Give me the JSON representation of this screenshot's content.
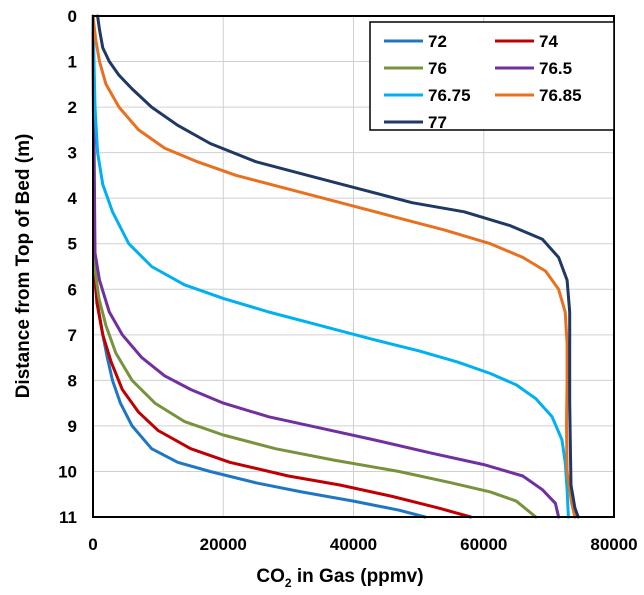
{
  "chart_data": {
    "type": "line",
    "xlabel_main": "CO",
    "xlabel_sub": "2",
    "xlabel_rest": " in Gas (ppmv)",
    "ylabel": "Distance from Top of Bed (m)",
    "xlim": [
      0,
      80000
    ],
    "ylim": [
      0,
      11
    ],
    "y_inverted": true,
    "x_ticks": [
      "0",
      "20000",
      "40000",
      "60000",
      "80000"
    ],
    "y_ticks": [
      "0",
      "1",
      "2",
      "3",
      "4",
      "5",
      "6",
      "7",
      "8",
      "9",
      "10",
      "11"
    ],
    "grid": true,
    "legend_position": "top-right",
    "series": [
      {
        "name": "72",
        "color": "#1f77c4",
        "points": [
          [
            0,
            0
          ],
          [
            150,
            5
          ],
          [
            400,
            6
          ],
          [
            900,
            6.5
          ],
          [
            1500,
            7
          ],
          [
            2200,
            7.5
          ],
          [
            3000,
            8
          ],
          [
            4200,
            8.5
          ],
          [
            6000,
            9
          ],
          [
            9000,
            9.5
          ],
          [
            13000,
            9.8
          ],
          [
            18000,
            10
          ],
          [
            25000,
            10.25
          ],
          [
            32000,
            10.45
          ],
          [
            40000,
            10.65
          ],
          [
            47000,
            10.85
          ],
          [
            51000,
            11
          ]
        ]
      },
      {
        "name": "74",
        "color": "#c00000",
        "points": [
          [
            0,
            0
          ],
          [
            200,
            5.5
          ],
          [
            600,
            6.3
          ],
          [
            1500,
            7
          ],
          [
            2800,
            7.6
          ],
          [
            4500,
            8.2
          ],
          [
            7000,
            8.7
          ],
          [
            10000,
            9.1
          ],
          [
            15000,
            9.5
          ],
          [
            21000,
            9.8
          ],
          [
            30000,
            10.1
          ],
          [
            38000,
            10.3
          ],
          [
            46000,
            10.55
          ],
          [
            53000,
            10.8
          ],
          [
            58000,
            11
          ]
        ]
      },
      {
        "name": "76",
        "color": "#77933c",
        "points": [
          [
            0,
            0
          ],
          [
            250,
            5.5
          ],
          [
            900,
            6.2
          ],
          [
            2000,
            6.8
          ],
          [
            3500,
            7.4
          ],
          [
            6000,
            8
          ],
          [
            9500,
            8.5
          ],
          [
            14000,
            8.9
          ],
          [
            20000,
            9.2
          ],
          [
            28000,
            9.5
          ],
          [
            37000,
            9.75
          ],
          [
            47000,
            10
          ],
          [
            55000,
            10.25
          ],
          [
            61000,
            10.45
          ],
          [
            65000,
            10.65
          ],
          [
            68000,
            11
          ]
        ]
      },
      {
        "name": "76.5",
        "color": "#7030a0",
        "points": [
          [
            0,
            0
          ],
          [
            300,
            5.2
          ],
          [
            1000,
            5.8
          ],
          [
            2500,
            6.5
          ],
          [
            4500,
            7
          ],
          [
            7500,
            7.5
          ],
          [
            11000,
            7.9
          ],
          [
            15000,
            8.2
          ],
          [
            20000,
            8.5
          ],
          [
            27000,
            8.8
          ],
          [
            35000,
            9.05
          ],
          [
            43000,
            9.3
          ],
          [
            52000,
            9.6
          ],
          [
            60000,
            9.85
          ],
          [
            66000,
            10.1
          ],
          [
            69000,
            10.4
          ],
          [
            71000,
            10.7
          ],
          [
            71500,
            11
          ]
        ]
      },
      {
        "name": "76.75",
        "color": "#00b0f0",
        "points": [
          [
            0,
            0
          ],
          [
            300,
            2
          ],
          [
            700,
            3
          ],
          [
            1500,
            3.7
          ],
          [
            3000,
            4.3
          ],
          [
            5500,
            5
          ],
          [
            9000,
            5.5
          ],
          [
            14000,
            5.9
          ],
          [
            20000,
            6.2
          ],
          [
            27000,
            6.5
          ],
          [
            35000,
            6.8
          ],
          [
            43000,
            7.1
          ],
          [
            50000,
            7.35
          ],
          [
            56000,
            7.6
          ],
          [
            61000,
            7.85
          ],
          [
            65000,
            8.1
          ],
          [
            68000,
            8.4
          ],
          [
            70500,
            8.8
          ],
          [
            72000,
            9.3
          ],
          [
            72500,
            9.8
          ],
          [
            72800,
            10.4
          ],
          [
            73000,
            11
          ]
        ]
      },
      {
        "name": "76.85",
        "color": "#e8701f",
        "points": [
          [
            0,
            0
          ],
          [
            400,
            0.5
          ],
          [
            1000,
            1
          ],
          [
            2000,
            1.5
          ],
          [
            4000,
            2
          ],
          [
            7000,
            2.5
          ],
          [
            11000,
            2.9
          ],
          [
            16000,
            3.2
          ],
          [
            22000,
            3.5
          ],
          [
            30000,
            3.8
          ],
          [
            38000,
            4.1
          ],
          [
            46000,
            4.4
          ],
          [
            54000,
            4.7
          ],
          [
            61000,
            5
          ],
          [
            66000,
            5.3
          ],
          [
            69500,
            5.6
          ],
          [
            71500,
            6
          ],
          [
            72500,
            6.5
          ],
          [
            72800,
            7.2
          ],
          [
            72800,
            8
          ],
          [
            72700,
            9
          ],
          [
            72800,
            10
          ],
          [
            73500,
            10.7
          ],
          [
            74000,
            11
          ]
        ]
      },
      {
        "name": "77",
        "color": "#1f3864",
        "points": [
          [
            700,
            0
          ],
          [
            1000,
            0.3
          ],
          [
            1500,
            0.7
          ],
          [
            2500,
            1
          ],
          [
            4000,
            1.3
          ],
          [
            6000,
            1.6
          ],
          [
            9000,
            2
          ],
          [
            13000,
            2.4
          ],
          [
            18000,
            2.8
          ],
          [
            25000,
            3.2
          ],
          [
            33000,
            3.5
          ],
          [
            41000,
            3.8
          ],
          [
            49000,
            4.1
          ],
          [
            57000,
            4.3
          ],
          [
            64000,
            4.6
          ],
          [
            69000,
            4.9
          ],
          [
            71500,
            5.3
          ],
          [
            72800,
            5.8
          ],
          [
            73200,
            6.5
          ],
          [
            73200,
            7.5
          ],
          [
            73200,
            8.5
          ],
          [
            73300,
            9.5
          ],
          [
            73400,
            10.3
          ],
          [
            74000,
            10.8
          ],
          [
            74500,
            11
          ]
        ]
      }
    ]
  }
}
